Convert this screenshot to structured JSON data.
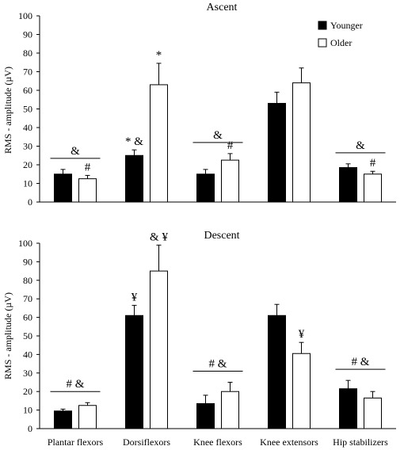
{
  "chart_data": [
    {
      "type": "bar",
      "title": "Ascent",
      "ylabel": "RMS - amplitude (µV)",
      "xlabel": "",
      "ylim": [
        0,
        100
      ],
      "yticks": [
        "0",
        "10",
        "20",
        "30",
        "40",
        "50",
        "60",
        "70",
        "80",
        "90",
        "100"
      ],
      "categories": [
        "Plantar flexors",
        "Dorsiflexors",
        "Knee flexors",
        "Knee extensors",
        "Hip stabilizers"
      ],
      "show_category_labels": false,
      "legend": {
        "placement": "top-right",
        "entries": [
          "Younger",
          "Older"
        ]
      },
      "series": [
        {
          "name": "Younger",
          "color": "#000000",
          "values": [
            15,
            25,
            15,
            53,
            18.5
          ],
          "errors": [
            2.5,
            3,
            2.5,
            6,
            2
          ]
        },
        {
          "name": "Older",
          "color": "#ffffff",
          "values": [
            12.5,
            63,
            22.5,
            64,
            15
          ],
          "errors": [
            1.8,
            11.5,
            3.5,
            8,
            1.5
          ]
        }
      ],
      "annotations": [
        {
          "text": "&",
          "category": 0,
          "series": "both",
          "bracket": true
        },
        {
          "text": "#",
          "category": 0,
          "series": 1
        },
        {
          "text": "* &",
          "category": 1,
          "series": 0
        },
        {
          "text": "*",
          "category": 1,
          "series": 1
        },
        {
          "text": "&",
          "category": 2,
          "series": "both",
          "bracket": true
        },
        {
          "text": "#",
          "category": 2,
          "series": 1
        },
        {
          "text": "&",
          "category": 4,
          "series": "both",
          "bracket": true
        },
        {
          "text": "#",
          "category": 4,
          "series": 1
        }
      ],
      "grid": false
    },
    {
      "type": "bar",
      "title": "Descent",
      "ylabel": "RMS - amplitude (µV)",
      "xlabel": "",
      "ylim": [
        0,
        100
      ],
      "yticks": [
        "0",
        "10",
        "20",
        "30",
        "40",
        "50",
        "60",
        "70",
        "80",
        "90",
        "100"
      ],
      "categories": [
        "Plantar flexors",
        "Dorsiflexors",
        "Knee flexors",
        "Knee extensors",
        "Hip stabilizers"
      ],
      "show_category_labels": true,
      "series": [
        {
          "name": "Younger",
          "color": "#000000",
          "values": [
            9.5,
            61,
            13.5,
            61,
            21.5
          ],
          "errors": [
            1,
            5.5,
            4.5,
            6,
            4.5
          ]
        },
        {
          "name": "Older",
          "color": "#ffffff",
          "values": [
            12.5,
            85,
            20,
            40.5,
            16.5
          ],
          "errors": [
            1.5,
            14,
            5,
            6,
            3.5
          ]
        }
      ],
      "annotations": [
        {
          "text": "# &",
          "category": 0,
          "series": "both",
          "bracket": true
        },
        {
          "text": "¥",
          "category": 1,
          "series": 0
        },
        {
          "text": "& ¥",
          "category": 1,
          "series": 1
        },
        {
          "text": "# &",
          "category": 2,
          "series": "both",
          "bracket": true
        },
        {
          "text": "¥",
          "category": 3,
          "series": 1
        },
        {
          "text": "# &",
          "category": 4,
          "series": "both",
          "bracket": true
        }
      ],
      "grid": false
    }
  ]
}
